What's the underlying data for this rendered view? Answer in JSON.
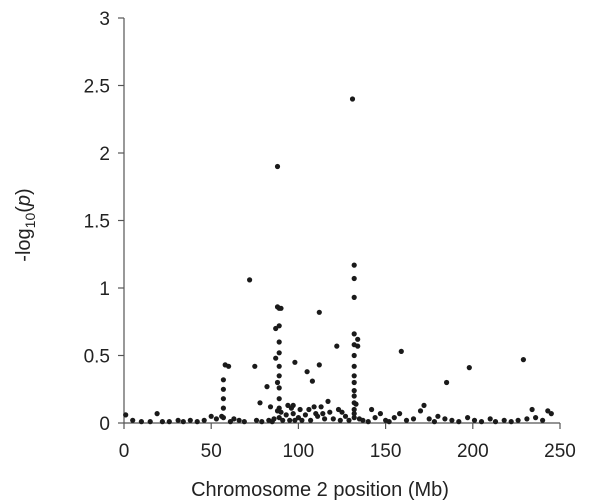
{
  "chart_data": {
    "type": "scatter",
    "xlabel": "Chromosome 2 position (Mb)",
    "ylabel": {
      "prefix": "-log",
      "subscript": "10",
      "open": "(",
      "italic": "p",
      "close": ")"
    },
    "xlim": [
      0,
      250
    ],
    "ylim": [
      0,
      3
    ],
    "xticks": [
      0,
      50,
      100,
      150,
      200,
      250
    ],
    "yticks": [
      0,
      0.5,
      1,
      1.5,
      2,
      2.5,
      3
    ],
    "ytick_labels": [
      "0",
      "0.5",
      "1",
      "1.5",
      "2",
      "2.5",
      "3"
    ],
    "grid": false,
    "marker_color": "#1a1a1a",
    "series": [
      {
        "points": [
          [
            1,
            0.06
          ],
          [
            5,
            0.02
          ],
          [
            10,
            0.01
          ],
          [
            15,
            0.01
          ],
          [
            19,
            0.07
          ],
          [
            22,
            0.01
          ],
          [
            26,
            0.01
          ],
          [
            31,
            0.02
          ],
          [
            34,
            0.01
          ],
          [
            38,
            0.02
          ],
          [
            42,
            0.01
          ],
          [
            46,
            0.02
          ],
          [
            50,
            0.05
          ],
          [
            53,
            0.03
          ],
          [
            56,
            0.05
          ],
          [
            57,
            0.32
          ],
          [
            57,
            0.25
          ],
          [
            57,
            0.18
          ],
          [
            57,
            0.11
          ],
          [
            57,
            0.04
          ],
          [
            58,
            0.43
          ],
          [
            60,
            0.42
          ],
          [
            61,
            0.01
          ],
          [
            63,
            0.03
          ],
          [
            66,
            0.02
          ],
          [
            69,
            0.01
          ],
          [
            72,
            1.06
          ],
          [
            75,
            0.42
          ],
          [
            76,
            0.02
          ],
          [
            78,
            0.15
          ],
          [
            79,
            0.01
          ],
          [
            82,
            0.27
          ],
          [
            83,
            0.02
          ],
          [
            84,
            0.12
          ],
          [
            85,
            0.01
          ],
          [
            86,
            0.03
          ],
          [
            87,
            0.48
          ],
          [
            87,
            0.7
          ],
          [
            88,
            0.86
          ],
          [
            88,
            1.9
          ],
          [
            88,
            0.3
          ],
          [
            88,
            0.09
          ],
          [
            89,
            0.85
          ],
          [
            89,
            0.72
          ],
          [
            89,
            0.6
          ],
          [
            89,
            0.52
          ],
          [
            89,
            0.42
          ],
          [
            89,
            0.35
          ],
          [
            89,
            0.26
          ],
          [
            89,
            0.18
          ],
          [
            89,
            0.11
          ],
          [
            89,
            0.04
          ],
          [
            90,
            0.85
          ],
          [
            90,
            0.08
          ],
          [
            91,
            0.02
          ],
          [
            93,
            0.06
          ],
          [
            94,
            0.13
          ],
          [
            95,
            0.02
          ],
          [
            96,
            0.11
          ],
          [
            97,
            0.13
          ],
          [
            97,
            0.07
          ],
          [
            98,
            0.45
          ],
          [
            98,
            0.02
          ],
          [
            100,
            0.04
          ],
          [
            101,
            0.1
          ],
          [
            102,
            0.02
          ],
          [
            104,
            0.06
          ],
          [
            105,
            0.38
          ],
          [
            106,
            0.1
          ],
          [
            107,
            0.02
          ],
          [
            108,
            0.31
          ],
          [
            109,
            0.12
          ],
          [
            110,
            0.07
          ],
          [
            111,
            0.05
          ],
          [
            112,
            0.82
          ],
          [
            112,
            0.43
          ],
          [
            113,
            0.12
          ],
          [
            114,
            0.07
          ],
          [
            115,
            0.03
          ],
          [
            117,
            0.16
          ],
          [
            118,
            0.08
          ],
          [
            120,
            0.03
          ],
          [
            122,
            0.57
          ],
          [
            123,
            0.1
          ],
          [
            124,
            0.02
          ],
          [
            125,
            0.08
          ],
          [
            127,
            0.05
          ],
          [
            129,
            0.02
          ],
          [
            131,
            2.4
          ],
          [
            132,
            1.17
          ],
          [
            132,
            1.07
          ],
          [
            132,
            0.93
          ],
          [
            132,
            0.66
          ],
          [
            132,
            0.58
          ],
          [
            132,
            0.5
          ],
          [
            132,
            0.42
          ],
          [
            132,
            0.35
          ],
          [
            132,
            0.3
          ],
          [
            132,
            0.24
          ],
          [
            132,
            0.2
          ],
          [
            132,
            0.15
          ],
          [
            132,
            0.1
          ],
          [
            132,
            0.07
          ],
          [
            132,
            0.04
          ],
          [
            133,
            0.14
          ],
          [
            134,
            0.57
          ],
          [
            134,
            0.62
          ],
          [
            135,
            0.03
          ],
          [
            137,
            0.02
          ],
          [
            140,
            0.01
          ],
          [
            142,
            0.1
          ],
          [
            144,
            0.04
          ],
          [
            147,
            0.07
          ],
          [
            150,
            0.02
          ],
          [
            152,
            0.01
          ],
          [
            155,
            0.04
          ],
          [
            158,
            0.07
          ],
          [
            159,
            0.53
          ],
          [
            162,
            0.02
          ],
          [
            166,
            0.03
          ],
          [
            170,
            0.09
          ],
          [
            172,
            0.13
          ],
          [
            175,
            0.03
          ],
          [
            178,
            0.01
          ],
          [
            180,
            0.05
          ],
          [
            184,
            0.03
          ],
          [
            185,
            0.3
          ],
          [
            188,
            0.02
          ],
          [
            192,
            0.01
          ],
          [
            197,
            0.04
          ],
          [
            198,
            0.41
          ],
          [
            201,
            0.02
          ],
          [
            205,
            0.01
          ],
          [
            210,
            0.03
          ],
          [
            213,
            0.01
          ],
          [
            218,
            0.02
          ],
          [
            222,
            0.01
          ],
          [
            226,
            0.02
          ],
          [
            229,
            0.47
          ],
          [
            231,
            0.03
          ],
          [
            234,
            0.1
          ],
          [
            236,
            0.04
          ],
          [
            240,
            0.02
          ],
          [
            243,
            0.09
          ],
          [
            245,
            0.07
          ]
        ]
      }
    ]
  }
}
